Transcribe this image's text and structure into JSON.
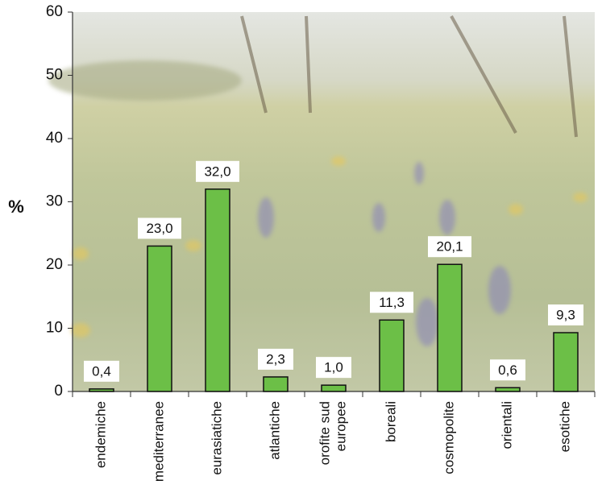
{
  "chart_data": {
    "type": "bar",
    "ylabel": "%",
    "categories": [
      "endemiche",
      "mediterranee",
      "eurasiatiche",
      "atlantiche",
      [
        "orofite sud",
        "europee"
      ],
      "boreali",
      "cosmopolite",
      "orientali",
      "esotiche"
    ],
    "values": [
      0.4,
      23.0,
      32.0,
      2.3,
      1.0,
      11.3,
      20.1,
      0.6,
      9.3
    ],
    "value_labels": [
      "0,4",
      "23,0",
      "32,0",
      "2,3",
      "1,0",
      "11,3",
      "20,1",
      "0,6",
      "9,3"
    ],
    "color": "#6cbf47",
    "ylim": [
      0,
      60
    ],
    "yticks": [
      0,
      10,
      20,
      30,
      40,
      50,
      60
    ]
  }
}
